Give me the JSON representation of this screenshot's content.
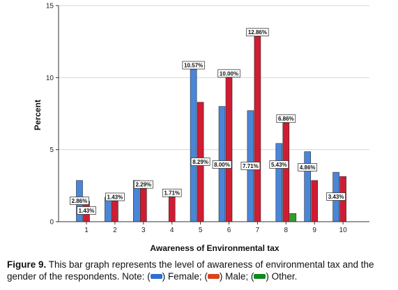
{
  "chart_data": {
    "type": "bar",
    "title": "",
    "xlabel": "Awareness of Environmental tax",
    "ylabel": "Percent",
    "categories": [
      "1",
      "2",
      "3",
      "4",
      "5",
      "6",
      "7",
      "8",
      "9",
      "10"
    ],
    "yticks": [
      "0",
      "5",
      "10",
      "15"
    ],
    "ylim": [
      0,
      15
    ],
    "grid": true,
    "series": [
      {
        "name": "Female",
        "color": "#4a86d8",
        "values": [
          2.86,
          1.71,
          2.86,
          0,
          10.57,
          8.0,
          7.71,
          5.43,
          4.86,
          3.43
        ]
      },
      {
        "name": "Male",
        "color": "#d01c32",
        "values": [
          1.43,
          1.43,
          2.29,
          1.71,
          8.29,
          10.0,
          12.86,
          6.86,
          2.86,
          3.14
        ]
      },
      {
        "name": "Other",
        "color": "#2f9e2f",
        "values": [
          0,
          0,
          0,
          0,
          0,
          0,
          0,
          0.57,
          0,
          0
        ]
      }
    ],
    "data_labels": [
      {
        "text": "2.86%",
        "category": "1",
        "series": "Female"
      },
      {
        "text": "1.43%",
        "category": "1",
        "series": "Male"
      },
      {
        "text": "1.43%",
        "category": "2",
        "series": "Male"
      },
      {
        "text": "2.29%",
        "category": "3",
        "series": "Male"
      },
      {
        "text": "1.71%",
        "category": "4",
        "series": "Male"
      },
      {
        "text": "10.57%",
        "category": "5",
        "series": "Female"
      },
      {
        "text": "8.29%",
        "category": "5",
        "series": "Male"
      },
      {
        "text": "10.00%",
        "category": "6",
        "series": "Male"
      },
      {
        "text": "8.00%",
        "category": "6",
        "series": "Female"
      },
      {
        "text": "12.86%",
        "category": "7",
        "series": "Male"
      },
      {
        "text": "7.71%",
        "category": "7",
        "series": "Female"
      },
      {
        "text": "6.86%",
        "category": "8",
        "series": "Male"
      },
      {
        "text": "5.43%",
        "category": "8",
        "series": "Female"
      },
      {
        "text": "4.86%",
        "category": "9",
        "series": "Female"
      },
      {
        "text": "3.43%",
        "category": "10",
        "series": "Female"
      }
    ]
  },
  "caption": {
    "label": "Figure 9.",
    "text_main": " This bar graph represents the level of awareness of environmental tax and the gender of the respondents. Note: (",
    "female": ") Female; (",
    "male": ") Male; (",
    "other": ") Other."
  }
}
